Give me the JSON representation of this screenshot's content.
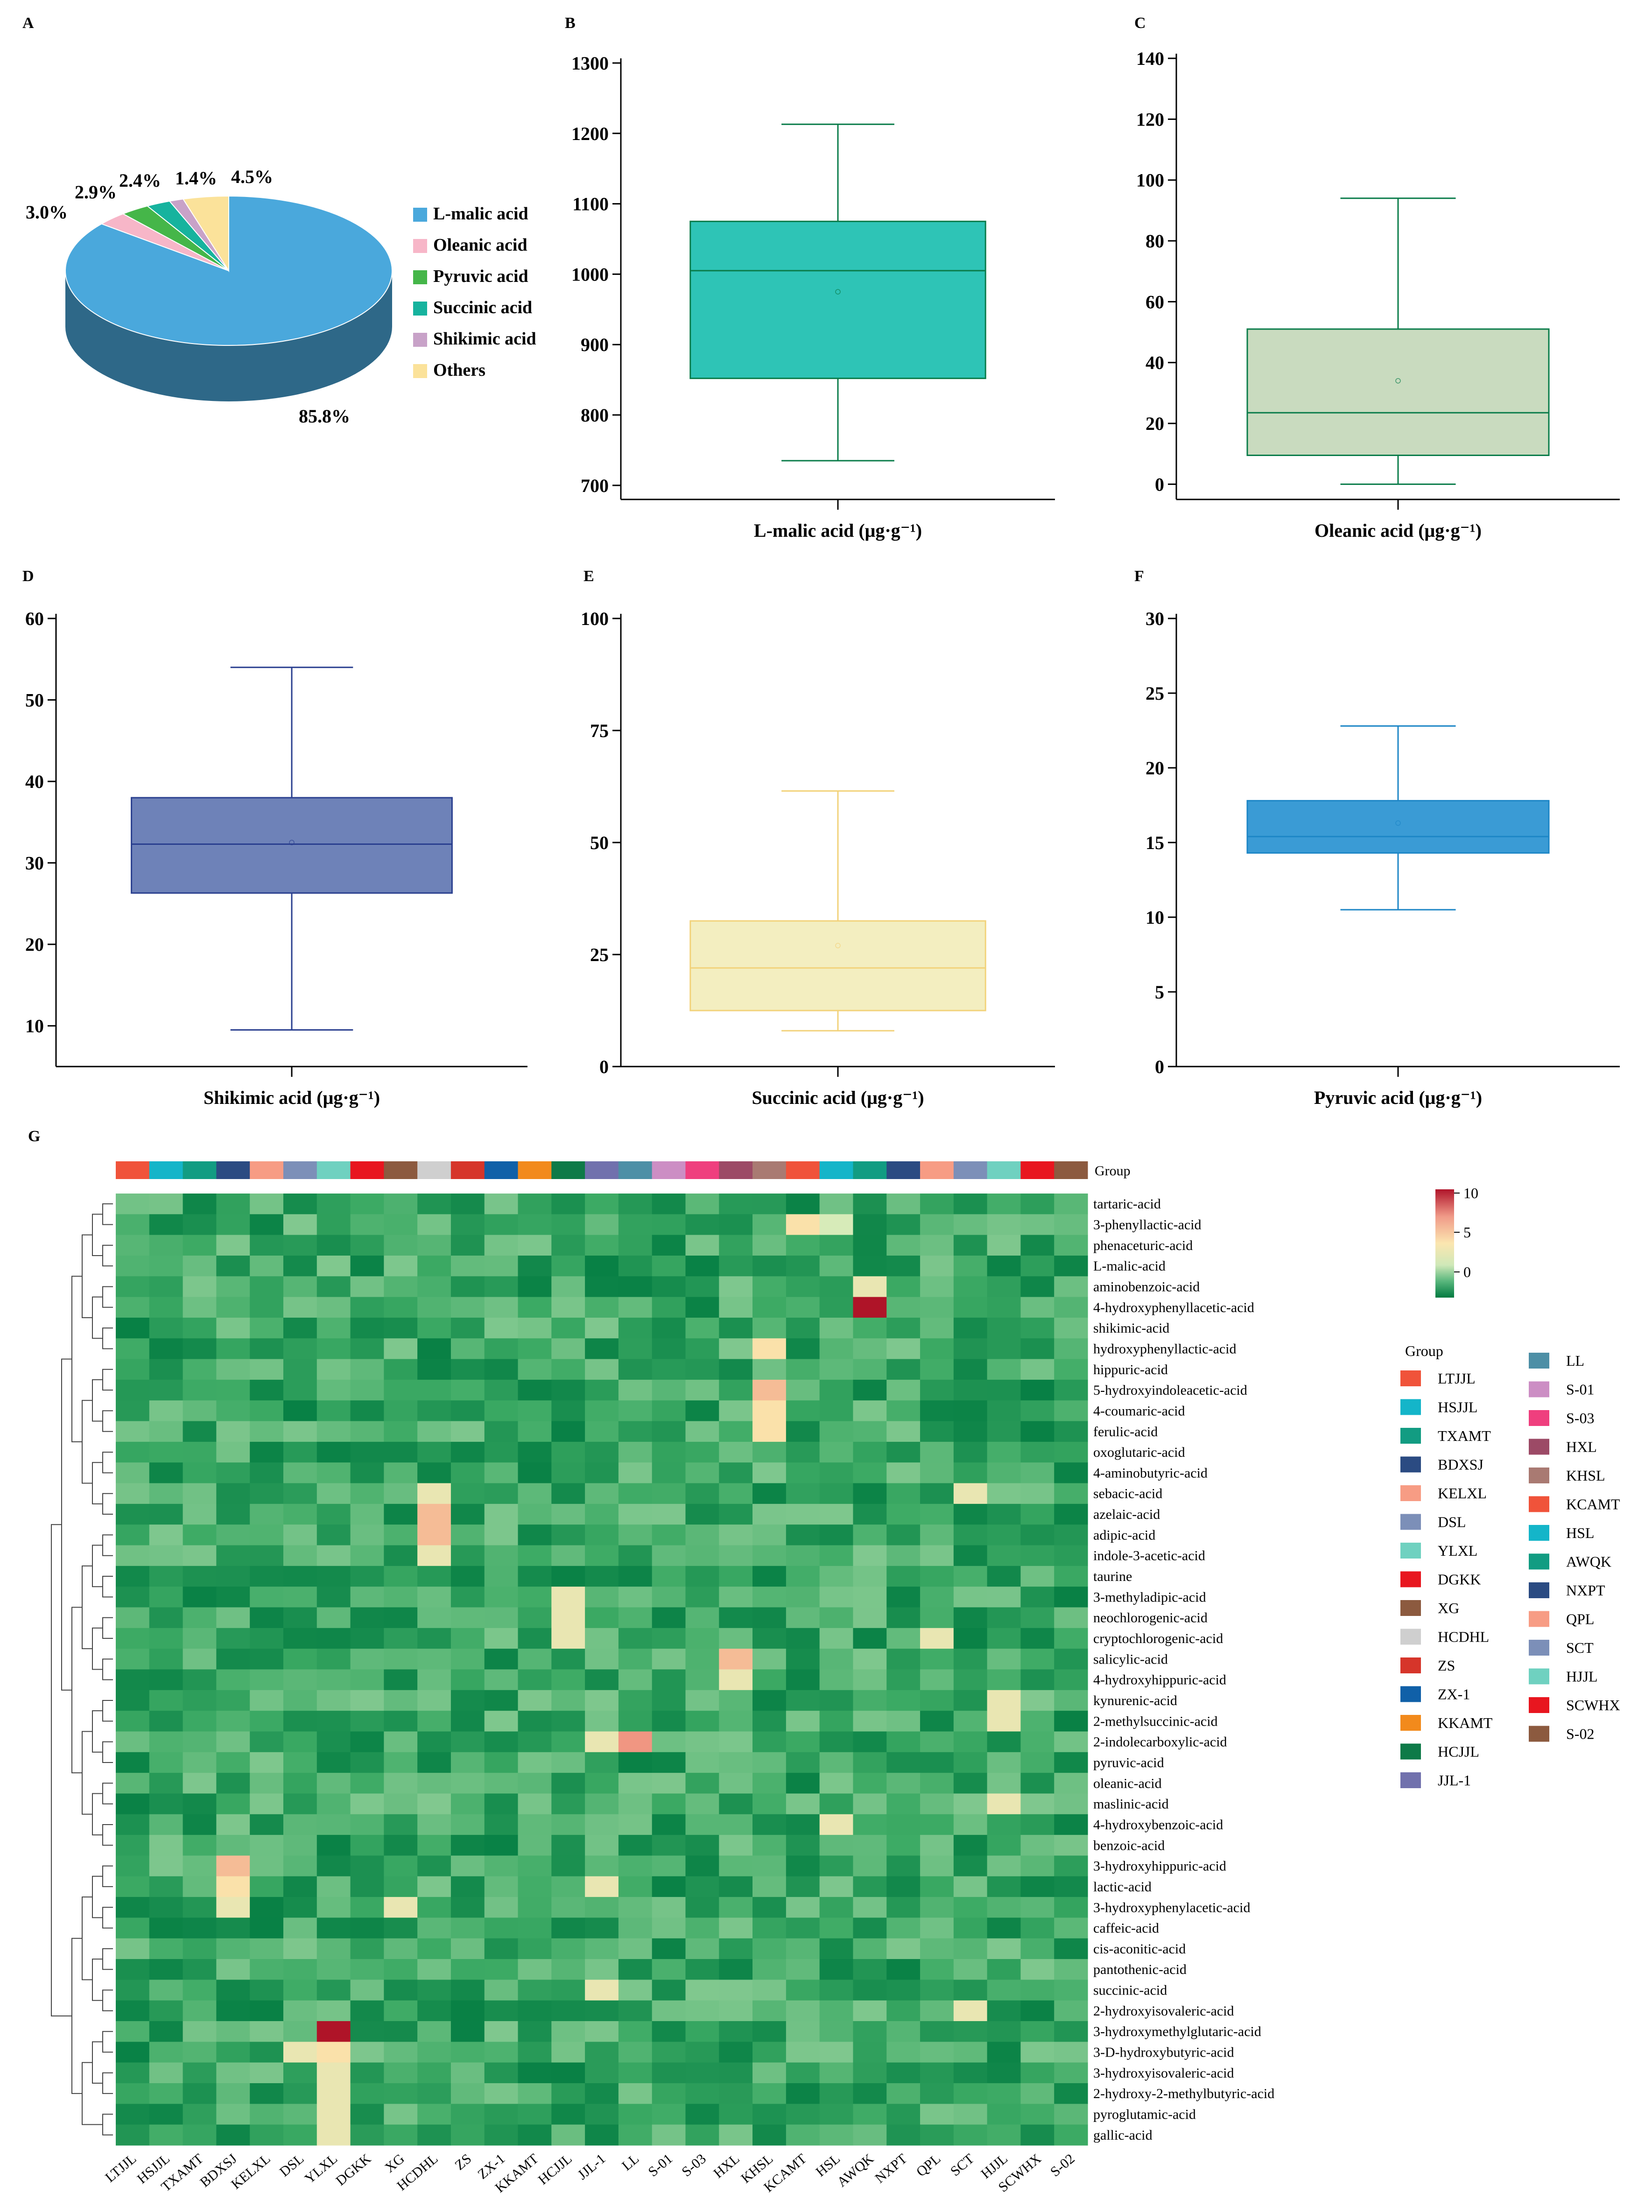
{
  "panel_labels": {
    "A": "A",
    "B": "B",
    "C": "C",
    "D": "D",
    "E": "E",
    "F": "F",
    "G": "G"
  },
  "chart_data": [
    {
      "panel": "A",
      "type": "pie",
      "categories": [
        "L-malic acid",
        "Oleanic acid",
        "Pyruvic acid",
        "Succinic acid",
        "Shikimic acid",
        "Others"
      ],
      "values": [
        85.8,
        3.0,
        2.9,
        2.4,
        1.4,
        4.5
      ],
      "value_labels": [
        "85.8%",
        "3.0%",
        "2.9%",
        "2.4%",
        "1.4%",
        "4.5%"
      ],
      "colors": [
        "#4aa8dc",
        "#f7b6c8",
        "#45b649",
        "#16b39e",
        "#c8a2c8",
        "#fbe29a"
      ]
    },
    {
      "panel": "B",
      "type": "box",
      "xlabel": "L-malic acid (μg·g⁻¹)",
      "ylim": [
        680,
        1300
      ],
      "yticks": [
        700,
        800,
        900,
        1000,
        1100,
        1200,
        1300
      ],
      "min": 735,
      "q1": 852,
      "median": 1005,
      "q3": 1075,
      "max": 1213,
      "mean": 975,
      "fill": "#2ec4b6",
      "stroke": "#0a7c4a"
    },
    {
      "panel": "C",
      "type": "box",
      "xlabel": "Oleanic acid (μg·g⁻¹)",
      "ylim": [
        -5,
        140
      ],
      "yticks": [
        0,
        20,
        40,
        60,
        80,
        100,
        120,
        140
      ],
      "min": 0,
      "q1": 9.5,
      "median": 23.5,
      "q3": 51,
      "max": 94,
      "mean": 34,
      "fill": "#c9dbbf",
      "stroke": "#0a7c4a"
    },
    {
      "panel": "D",
      "type": "box",
      "xlabel": "Shikimic acid (μg·g⁻¹)",
      "ylim": [
        5,
        60
      ],
      "yticks": [
        10,
        20,
        30,
        40,
        50,
        60
      ],
      "min": 9.5,
      "q1": 26.3,
      "median": 32.3,
      "q3": 38.0,
      "max": 54.0,
      "mean": 32.5,
      "fill": "#6e82b8",
      "stroke": "#2a3f8f"
    },
    {
      "panel": "E",
      "type": "box",
      "xlabel": "Succinic acid (μg·g⁻¹)",
      "ylim": [
        0,
        100
      ],
      "yticks": [
        0,
        25,
        50,
        75,
        100
      ],
      "min": 8,
      "q1": 12.5,
      "median": 22,
      "q3": 32.5,
      "max": 61.5,
      "mean": 27,
      "fill": "#f3eec0",
      "stroke": "#f2d27a"
    },
    {
      "panel": "F",
      "type": "box",
      "xlabel": "Pyruvic acid (μg·g⁻¹)",
      "ylim": [
        0,
        30
      ],
      "yticks": [
        0,
        5,
        10,
        15,
        20,
        25,
        30
      ],
      "min": 10.5,
      "q1": 14.3,
      "median": 15.4,
      "q3": 17.8,
      "max": 22.8,
      "mean": 16.3,
      "fill": "#3a9bd5",
      "stroke": "#1d86c6"
    },
    {
      "panel": "G",
      "type": "heatmap",
      "group_title": "Group",
      "scale": {
        "ticks": [
          "10",
          "5",
          "0"
        ],
        "min": -1,
        "max": 10
      },
      "columns": [
        "LTJJL",
        "HSJJL",
        "TXAMT",
        "BDXSJ",
        "KELXL",
        "DSL",
        "YLXL",
        "DGKK",
        "XG",
        "HCDHL",
        "ZS",
        "ZX-1",
        "KKAMT",
        "HCJJL",
        "JJL-1",
        "LL",
        "S-01",
        "S-03",
        "HXL",
        "KHSL",
        "KCAMT",
        "HSL",
        "AWQK",
        "NXPT",
        "QPL",
        "SCT",
        "HJJL",
        "SCWHX",
        "S-02"
      ],
      "group_colors": [
        "#f0533a",
        "#14b5c9",
        "#129c82",
        "#2b4b82",
        "#f79c84",
        "#7c8fb8",
        "#6fd1c0",
        "#e8161f",
        "#8c5a3f",
        "#cfcfcf",
        "#d6352a",
        "#1060a8",
        "#f28a1c",
        "#0e7a48",
        "#7171ad",
        "#4d8fa6",
        "#cc8ec4",
        "#ef3f7e",
        "#9c4a66",
        "#a97a72",
        "#f0533a",
        "#14b5c9",
        "#129c82",
        "#2b4b82",
        "#f79c84",
        "#7c8fb8",
        "#6fd1c0",
        "#e8161f",
        "#8c5a3f"
      ],
      "rows": [
        "tartaric-acid",
        "3-phenyllactic-acid",
        "phenaceturic-acid",
        "L-malic-acid",
        "aminobenzoic-acid",
        "4-hydroxyphenyllacetic-acid",
        "shikimic-acid",
        "hydroxyphenyllactic-acid",
        "hippuric-acid",
        "5-hydroxyindoleacetic-acid",
        "4-coumaric-acid",
        "ferulic-acid",
        "oxoglutaric-acid",
        "4-aminobutyric-acid",
        "sebacic-acid",
        "azelaic-acid",
        "adipic-acid",
        "indole-3-acetic-acid",
        "taurine",
        "3-methyladipic-acid",
        "neochlorogenic-acid",
        "cryptochlorogenic-acid",
        "salicylic-acid",
        "4-hydroxyhippuric-acid",
        "kynurenic-acid",
        "2-methylsuccinic-acid",
        "2-indolecarboxylic-acid",
        "pyruvic-acid",
        "oleanic-acid",
        "maslinic-acid",
        "4-hydroxybenzoic-acid",
        "benzoic-acid",
        "3-hydroxyhippuric-acid",
        "lactic-acid",
        "3-hydroxyphenylacetic-acid",
        "caffeic-acid",
        "cis-aconitic-acid",
        "pantothenic-acid",
        "succinic-acid",
        "2-hydroxyisovaleric-acid",
        "3-hydroxymethylglutaric-acid",
        "3-D-hydroxybutyric-acid",
        "3-hydroxyisovaleric-acid",
        "2-hydroxy-2-methylbutyric-acid",
        "pyroglutamic-acid",
        "gallic-acid"
      ],
      "highlights": [
        {
          "row": "3-phenyllactic-acid",
          "col": "KCAMT",
          "value": 5
        },
        {
          "row": "3-phenyllactic-acid",
          "col": "HSL",
          "value": 3
        },
        {
          "row": "aminobenzoic-acid",
          "col": "AWQK",
          "value": 4
        },
        {
          "row": "4-hydroxyphenyllacetic-acid",
          "col": "AWQK",
          "value": 10
        },
        {
          "row": "hydroxyphenyllactic-acid",
          "col": "KHSL",
          "value": 5
        },
        {
          "row": "5-hydroxyindoleacetic-acid",
          "col": "KHSL",
          "value": 6
        },
        {
          "row": "4-coumaric-acid",
          "col": "KHSL",
          "value": 5
        },
        {
          "row": "ferulic-acid",
          "col": "KHSL",
          "value": 5
        },
        {
          "row": "sebacic-acid",
          "col": "HCDHL",
          "value": 4
        },
        {
          "row": "sebacic-acid",
          "col": "SCT",
          "value": 4
        },
        {
          "row": "azelaic-acid",
          "col": "HCDHL",
          "value": 6
        },
        {
          "row": "adipic-acid",
          "col": "HCDHL",
          "value": 6
        },
        {
          "row": "indole-3-acetic-acid",
          "col": "HCDHL",
          "value": 4
        },
        {
          "row": "3-methyladipic-acid",
          "col": "HCJJL",
          "value": 4
        },
        {
          "row": "neochlorogenic-acid",
          "col": "HCJJL",
          "value": 4
        },
        {
          "row": "cryptochlorogenic-acid",
          "col": "HCJJL",
          "value": 4
        },
        {
          "row": "cryptochlorogenic-acid",
          "col": "QPL",
          "value": 4
        },
        {
          "row": "salicylic-acid",
          "col": "HXL",
          "value": 6
        },
        {
          "row": "4-hydroxyhippuric-acid",
          "col": "HXL",
          "value": 4
        },
        {
          "row": "kynurenic-acid",
          "col": "HJJL",
          "value": 4
        },
        {
          "row": "2-methylsuccinic-acid",
          "col": "HJJL",
          "value": 4
        },
        {
          "row": "2-indolecarboxylic-acid",
          "col": "LL",
          "value": 7
        },
        {
          "row": "2-indolecarboxylic-acid",
          "col": "JJL-1",
          "value": 4
        },
        {
          "row": "maslinic-acid",
          "col": "HJJL",
          "value": 4
        },
        {
          "row": "4-hydroxybenzoic-acid",
          "col": "HSL",
          "value": 4
        },
        {
          "row": "3-hydroxyhippuric-acid",
          "col": "BDXSJ",
          "value": 6
        },
        {
          "row": "lactic-acid",
          "col": "BDXSJ",
          "value": 5
        },
        {
          "row": "lactic-acid",
          "col": "JJL-1",
          "value": 4
        },
        {
          "row": "3-hydroxyphenylacetic-acid",
          "col": "BDXSJ",
          "value": 4
        },
        {
          "row": "3-hydroxyphenylacetic-acid",
          "col": "XG",
          "value": 4
        },
        {
          "row": "succinic-acid",
          "col": "JJL-1",
          "value": 4
        },
        {
          "row": "2-hydroxyisovaleric-acid",
          "col": "SCT",
          "value": 4
        },
        {
          "row": "3-hydroxymethylglutaric-acid",
          "col": "YLXL",
          "value": 10
        },
        {
          "row": "3-D-hydroxybutyric-acid",
          "col": "YLXL",
          "value": 5
        },
        {
          "row": "3-D-hydroxybutyric-acid",
          "col": "DSL",
          "value": 4
        },
        {
          "row": "3-hydroxyisovaleric-acid",
          "col": "YLXL",
          "value": 4
        },
        {
          "row": "2-hydroxy-2-methylbutyric-acid",
          "col": "YLXL",
          "value": 4
        },
        {
          "row": "pyroglutamic-acid",
          "col": "YLXL",
          "value": 4
        },
        {
          "row": "gallic-acid",
          "col": "YLXL",
          "value": 4
        }
      ]
    }
  ]
}
